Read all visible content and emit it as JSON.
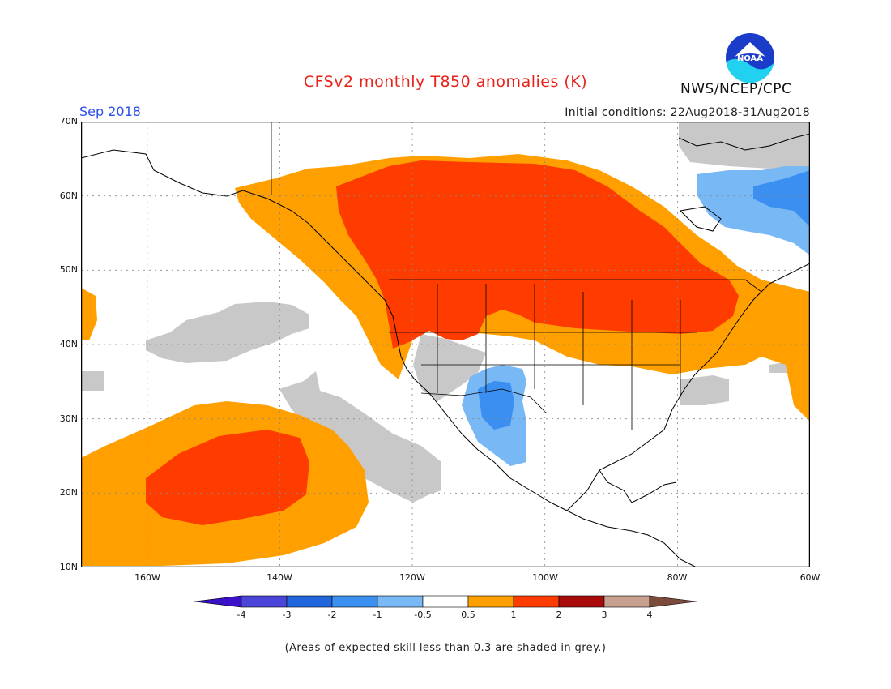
{
  "header": {
    "title": "CFSv2 monthly T850 anomalies (K)",
    "month": "Sep 2018",
    "initial_conditions": "Initial conditions: 22Aug2018-31Aug2018",
    "agency": "NWS/NCEP/CPC",
    "logo_text": "NOAA"
  },
  "map": {
    "lat_labels": [
      "70N",
      "60N",
      "50N",
      "40N",
      "30N",
      "20N",
      "10N"
    ],
    "lon_labels": [
      "160W",
      "140W",
      "120W",
      "100W",
      "80W",
      "60W"
    ]
  },
  "colorbar": {
    "labels": [
      "-4",
      "-3",
      "-2",
      "-1",
      "-0.5",
      "0.5",
      "1",
      "2",
      "3",
      "4"
    ],
    "colors": [
      "#3a10c8",
      "#4a44d8",
      "#2266dd",
      "#3b8ff0",
      "#78b8f5",
      "#ffffff",
      "#ffa000",
      "#ff3c00",
      "#a80a0a",
      "#c8a090",
      "#7a4a3a"
    ],
    "unit": "K"
  },
  "legend_colors": {
    "grey_low_skill": "#c8c8c8",
    "orange": "#ffa000",
    "red": "#ff3c00",
    "light_blue": "#78b8f5",
    "blue": "#3b8ff0"
  },
  "footnote": "(Areas of expected skill less than 0.3 are shaded in grey.)"
}
